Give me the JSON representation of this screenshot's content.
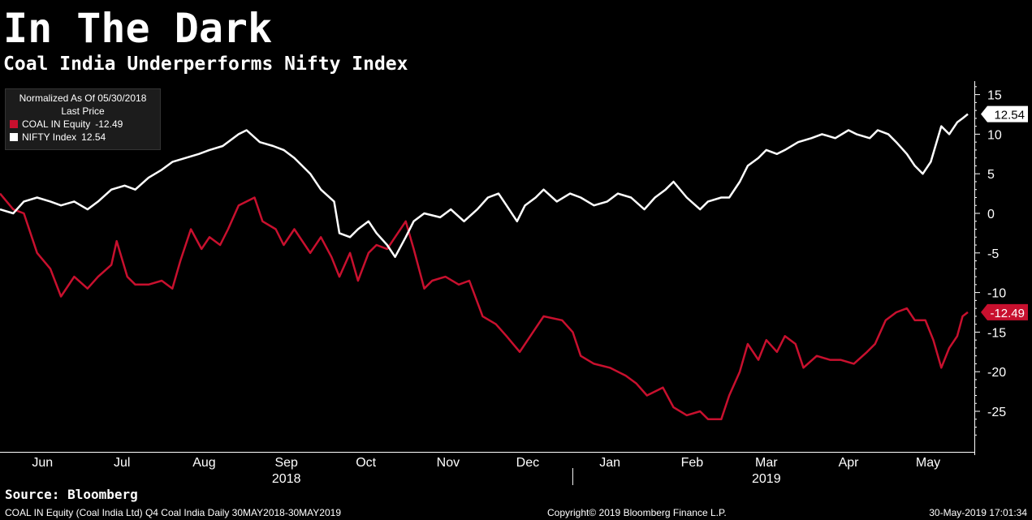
{
  "header": {
    "title": "In The Dark",
    "subtitle": "Coal India Underperforms Nifty Index"
  },
  "legend": {
    "heading1": "Normalized As Of 05/30/2018",
    "heading2": "Last Price",
    "entries": [
      {
        "name": "COAL IN Equity",
        "value": "-12.49",
        "color": "#c8102e"
      },
      {
        "name": "NIFTY Index",
        "value": "12.54",
        "color": "#ffffff"
      }
    ]
  },
  "footer": {
    "source": "Source: Bloomberg",
    "left": "COAL IN Equity (Coal India Ltd) Q4 Coal India  Daily 30MAY2018-30MAY2019",
    "center": "Copyright© 2019 Bloomberg Finance L.P.",
    "right": "30-May-2019 17:01:34"
  },
  "chart_data": {
    "type": "line",
    "title": "In The Dark",
    "subtitle": "Coal India Underperforms Nifty Index",
    "ylim": [
      -30,
      16
    ],
    "yticks": [
      15,
      10,
      5,
      0,
      -5,
      -10,
      -15,
      -20,
      -25
    ],
    "ytick_labels": [
      "15",
      "10",
      "5",
      "0",
      "-5",
      "-10",
      "-15",
      "-20",
      "-25"
    ],
    "grid": false,
    "legend_position": "top-left",
    "x_range": [
      "2018-05-30",
      "2019-05-30"
    ],
    "x_months": [
      {
        "label": "Jun",
        "date": "2018-06-15"
      },
      {
        "label": "Jul",
        "date": "2018-07-15"
      },
      {
        "label": "Aug",
        "date": "2018-08-15"
      },
      {
        "label": "Sep",
        "date": "2018-09-15"
      },
      {
        "label": "Oct",
        "date": "2018-10-15"
      },
      {
        "label": "Nov",
        "date": "2018-11-15"
      },
      {
        "label": "Dec",
        "date": "2018-12-15"
      },
      {
        "label": "Jan",
        "date": "2019-01-15"
      },
      {
        "label": "Feb",
        "date": "2019-02-15"
      },
      {
        "label": "Mar",
        "date": "2019-03-15"
      },
      {
        "label": "Apr",
        "date": "2019-04-15"
      },
      {
        "label": "May",
        "date": "2019-05-15"
      }
    ],
    "x_years": [
      {
        "label": "2018",
        "date": "2018-09-15"
      },
      {
        "label": "2019",
        "date": "2019-03-15"
      }
    ],
    "year_separator": "2019-01-01",
    "series": [
      {
        "name": "COAL IN Equity",
        "color": "#c8102e",
        "last_label": "-12.49",
        "points": [
          [
            "2018-05-30",
            2.5
          ],
          [
            "2018-06-04",
            0.5
          ],
          [
            "2018-06-08",
            0.0
          ],
          [
            "2018-06-13",
            -5.0
          ],
          [
            "2018-06-18",
            -7.0
          ],
          [
            "2018-06-22",
            -10.5
          ],
          [
            "2018-06-27",
            -8.0
          ],
          [
            "2018-07-02",
            -9.5
          ],
          [
            "2018-07-06",
            -8.0
          ],
          [
            "2018-07-11",
            -6.5
          ],
          [
            "2018-07-13",
            -3.5
          ],
          [
            "2018-07-17",
            -8.0
          ],
          [
            "2018-07-20",
            -9.0
          ],
          [
            "2018-07-25",
            -9.0
          ],
          [
            "2018-07-30",
            -8.5
          ],
          [
            "2018-08-03",
            -9.5
          ],
          [
            "2018-08-06",
            -6.0
          ],
          [
            "2018-08-10",
            -2.0
          ],
          [
            "2018-08-14",
            -4.5
          ],
          [
            "2018-08-17",
            -3.0
          ],
          [
            "2018-08-21",
            -4.0
          ],
          [
            "2018-08-24",
            -2.0
          ],
          [
            "2018-08-28",
            1.0
          ],
          [
            "2018-09-03",
            2.0
          ],
          [
            "2018-09-06",
            -1.0
          ],
          [
            "2018-09-11",
            -2.0
          ],
          [
            "2018-09-14",
            -4.0
          ],
          [
            "2018-09-18",
            -2.0
          ],
          [
            "2018-09-24",
            -5.0
          ],
          [
            "2018-09-28",
            -3.0
          ],
          [
            "2018-10-02",
            -5.5
          ],
          [
            "2018-10-05",
            -8.0
          ],
          [
            "2018-10-09",
            -5.0
          ],
          [
            "2018-10-12",
            -8.5
          ],
          [
            "2018-10-16",
            -5.0
          ],
          [
            "2018-10-19",
            -4.0
          ],
          [
            "2018-10-23",
            -4.5
          ],
          [
            "2018-10-26",
            -3.0
          ],
          [
            "2018-10-30",
            -1.0
          ],
          [
            "2018-11-02",
            -4.5
          ],
          [
            "2018-11-06",
            -9.5
          ],
          [
            "2018-11-09",
            -8.5
          ],
          [
            "2018-11-14",
            -8.0
          ],
          [
            "2018-11-19",
            -9.0
          ],
          [
            "2018-11-23",
            -8.5
          ],
          [
            "2018-11-28",
            -13.0
          ],
          [
            "2018-12-03",
            -14.0
          ],
          [
            "2018-12-07",
            -15.5
          ],
          [
            "2018-12-12",
            -17.5
          ],
          [
            "2018-12-17",
            -15.0
          ],
          [
            "2018-12-21",
            -13.0
          ],
          [
            "2018-12-28",
            -13.5
          ],
          [
            "2019-01-01",
            -15.0
          ],
          [
            "2019-01-04",
            -18.0
          ],
          [
            "2019-01-09",
            -19.0
          ],
          [
            "2019-01-15",
            -19.5
          ],
          [
            "2019-01-21",
            -20.5
          ],
          [
            "2019-01-25",
            -21.5
          ],
          [
            "2019-01-29",
            -23.0
          ],
          [
            "2019-02-04",
            -22.0
          ],
          [
            "2019-02-08",
            -24.5
          ],
          [
            "2019-02-13",
            -25.5
          ],
          [
            "2019-02-18",
            -25.0
          ],
          [
            "2019-02-21",
            -26.0
          ],
          [
            "2019-02-26",
            -26.0
          ],
          [
            "2019-03-01",
            -23.0
          ],
          [
            "2019-03-05",
            -20.0
          ],
          [
            "2019-03-08",
            -16.5
          ],
          [
            "2019-03-12",
            -18.5
          ],
          [
            "2019-03-15",
            -16.0
          ],
          [
            "2019-03-19",
            -17.5
          ],
          [
            "2019-03-22",
            -15.5
          ],
          [
            "2019-03-26",
            -16.5
          ],
          [
            "2019-03-29",
            -19.5
          ],
          [
            "2019-04-03",
            -18.0
          ],
          [
            "2019-04-08",
            -18.5
          ],
          [
            "2019-04-12",
            -18.5
          ],
          [
            "2019-04-17",
            -19.0
          ],
          [
            "2019-04-22",
            -17.5
          ],
          [
            "2019-04-25",
            -16.5
          ],
          [
            "2019-04-29",
            -13.5
          ],
          [
            "2019-05-03",
            -12.5
          ],
          [
            "2019-05-07",
            -12.0
          ],
          [
            "2019-05-10",
            -13.5
          ],
          [
            "2019-05-14",
            -13.5
          ],
          [
            "2019-05-17",
            -16.0
          ],
          [
            "2019-05-20",
            -19.5
          ],
          [
            "2019-05-23",
            -17.0
          ],
          [
            "2019-05-26",
            -15.5
          ],
          [
            "2019-05-28",
            -13.0
          ],
          [
            "2019-05-30",
            -12.49
          ]
        ]
      },
      {
        "name": "NIFTY Index",
        "color": "#ffffff",
        "last_label": "12.54",
        "points": [
          [
            "2018-05-30",
            0.5
          ],
          [
            "2018-06-04",
            0.0
          ],
          [
            "2018-06-08",
            1.5
          ],
          [
            "2018-06-13",
            2.0
          ],
          [
            "2018-06-18",
            1.5
          ],
          [
            "2018-06-22",
            1.0
          ],
          [
            "2018-06-27",
            1.5
          ],
          [
            "2018-07-02",
            0.5
          ],
          [
            "2018-07-06",
            1.5
          ],
          [
            "2018-07-11",
            3.0
          ],
          [
            "2018-07-16",
            3.5
          ],
          [
            "2018-07-20",
            3.0
          ],
          [
            "2018-07-25",
            4.5
          ],
          [
            "2018-07-30",
            5.5
          ],
          [
            "2018-08-03",
            6.5
          ],
          [
            "2018-08-08",
            7.0
          ],
          [
            "2018-08-13",
            7.5
          ],
          [
            "2018-08-17",
            8.0
          ],
          [
            "2018-08-22",
            8.5
          ],
          [
            "2018-08-28",
            10.0
          ],
          [
            "2018-08-31",
            10.5
          ],
          [
            "2018-09-05",
            9.0
          ],
          [
            "2018-09-10",
            8.5
          ],
          [
            "2018-09-14",
            8.0
          ],
          [
            "2018-09-18",
            7.0
          ],
          [
            "2018-09-24",
            5.0
          ],
          [
            "2018-09-28",
            3.0
          ],
          [
            "2018-10-03",
            1.5
          ],
          [
            "2018-10-05",
            -2.5
          ],
          [
            "2018-10-09",
            -3.0
          ],
          [
            "2018-10-12",
            -2.0
          ],
          [
            "2018-10-16",
            -1.0
          ],
          [
            "2018-10-19",
            -2.5
          ],
          [
            "2018-10-23",
            -4.0
          ],
          [
            "2018-10-26",
            -5.5
          ],
          [
            "2018-10-30",
            -3.0
          ],
          [
            "2018-11-02",
            -1.0
          ],
          [
            "2018-11-06",
            0.0
          ],
          [
            "2018-11-12",
            -0.5
          ],
          [
            "2018-11-16",
            0.5
          ],
          [
            "2018-11-21",
            -1.0
          ],
          [
            "2018-11-26",
            0.5
          ],
          [
            "2018-11-30",
            2.0
          ],
          [
            "2018-12-04",
            2.5
          ],
          [
            "2018-12-07",
            1.0
          ],
          [
            "2018-12-11",
            -1.0
          ],
          [
            "2018-12-14",
            1.0
          ],
          [
            "2018-12-18",
            2.0
          ],
          [
            "2018-12-21",
            3.0
          ],
          [
            "2018-12-26",
            1.5
          ],
          [
            "2018-12-31",
            2.5
          ],
          [
            "2019-01-04",
            2.0
          ],
          [
            "2019-01-09",
            1.0
          ],
          [
            "2019-01-14",
            1.5
          ],
          [
            "2019-01-18",
            2.5
          ],
          [
            "2019-01-23",
            2.0
          ],
          [
            "2019-01-28",
            0.5
          ],
          [
            "2019-02-01",
            2.0
          ],
          [
            "2019-02-05",
            3.0
          ],
          [
            "2019-02-08",
            4.0
          ],
          [
            "2019-02-13",
            2.0
          ],
          [
            "2019-02-18",
            0.5
          ],
          [
            "2019-02-21",
            1.5
          ],
          [
            "2019-02-26",
            2.0
          ],
          [
            "2019-03-01",
            2.0
          ],
          [
            "2019-03-05",
            4.0
          ],
          [
            "2019-03-08",
            6.0
          ],
          [
            "2019-03-12",
            7.0
          ],
          [
            "2019-03-15",
            8.0
          ],
          [
            "2019-03-19",
            7.5
          ],
          [
            "2019-03-22",
            8.0
          ],
          [
            "2019-03-27",
            9.0
          ],
          [
            "2019-04-01",
            9.5
          ],
          [
            "2019-04-05",
            10.0
          ],
          [
            "2019-04-10",
            9.5
          ],
          [
            "2019-04-15",
            10.5
          ],
          [
            "2019-04-18",
            10.0
          ],
          [
            "2019-04-23",
            9.5
          ],
          [
            "2019-04-26",
            10.5
          ],
          [
            "2019-04-30",
            10.0
          ],
          [
            "2019-05-03",
            9.0
          ],
          [
            "2019-05-07",
            7.5
          ],
          [
            "2019-05-10",
            6.0
          ],
          [
            "2019-05-13",
            5.0
          ],
          [
            "2019-05-16",
            6.5
          ],
          [
            "2019-05-20",
            11.0
          ],
          [
            "2019-05-23",
            10.0
          ],
          [
            "2019-05-26",
            11.5
          ],
          [
            "2019-05-28",
            12.0
          ],
          [
            "2019-05-30",
            12.54
          ]
        ]
      }
    ]
  }
}
